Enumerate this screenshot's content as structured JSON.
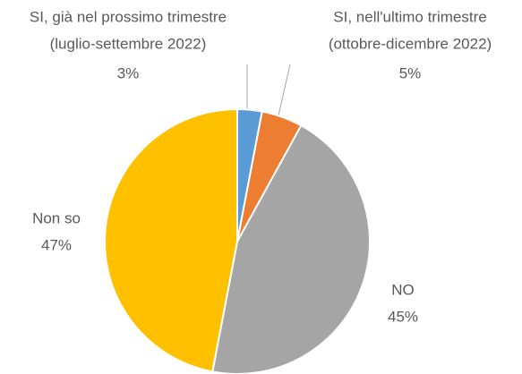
{
  "chart_data": {
    "type": "pie",
    "categories": [
      [
        "SI, già nel prossimo trimestre",
        "(luglio-settembre 2022)"
      ],
      [
        "SI, nell'ultimo trimestre",
        "(ottobre-dicembre 2022)"
      ],
      [
        "NO"
      ],
      [
        "Non so"
      ]
    ],
    "values": [
      3,
      5,
      45,
      47
    ],
    "value_labels": [
      "3%",
      "5%",
      "45%",
      "47%"
    ],
    "colors": [
      "#5b9bd5",
      "#ed7d31",
      "#a5a5a5",
      "#ffc000"
    ]
  }
}
